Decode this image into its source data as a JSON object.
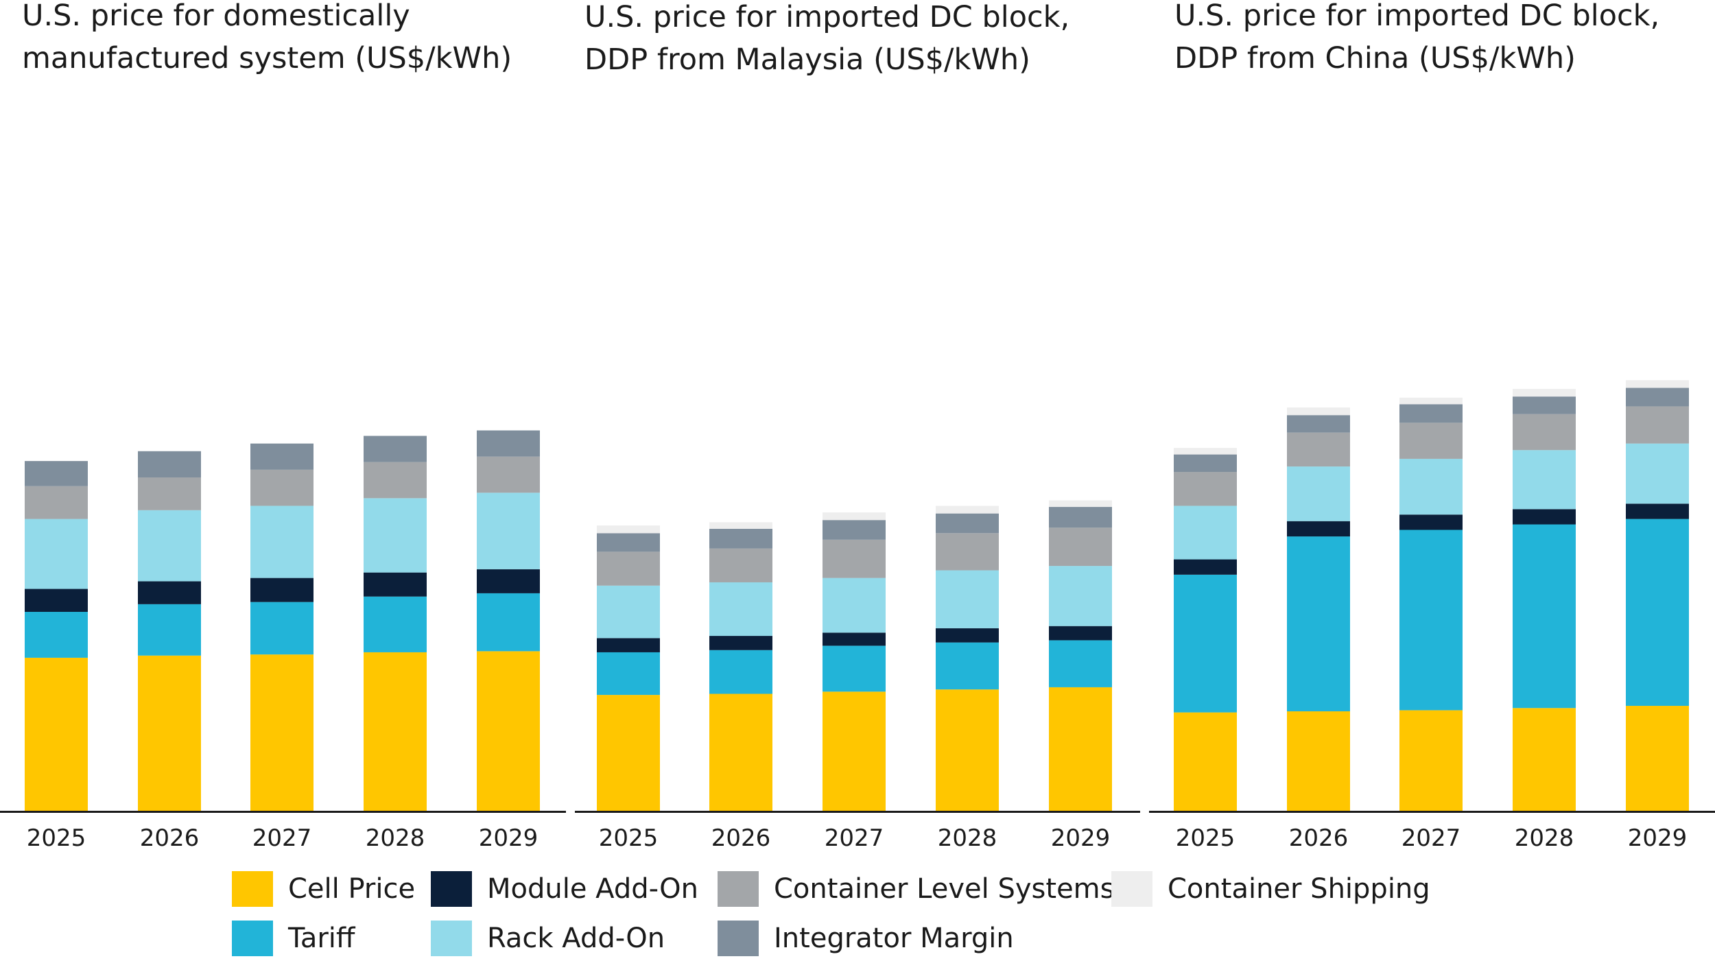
{
  "chart_data": {
    "type": "bar",
    "stacked": true,
    "categories": [
      "2025",
      "2026",
      "2027",
      "2028",
      "2029"
    ],
    "series_order": [
      "Cell Price",
      "Tariff",
      "Module Add-On",
      "Rack Add-On",
      "Container Level Systems",
      "Integrator Margin",
      "Container Shipping"
    ],
    "colors": {
      "Cell Price": "#FFC600",
      "Tariff": "#22B4D8",
      "Module Add-On": "#0B1F3A",
      "Rack Add-On": "#92DAEA",
      "Container Level Systems": "#A3A6A9",
      "Integrator Margin": "#7F8E9C",
      "Container Shipping": "#EEEEEE"
    },
    "ylim": [
      0,
      391
    ],
    "panels": [
      {
        "title_line1": "U.S. price for domestically",
        "title_line2": "manufactured system (US$/kWh)",
        "series": [
          {
            "name": "Cell Price",
            "values": [
              140,
              142,
              143,
              145,
              146
            ]
          },
          {
            "name": "Tariff",
            "values": [
              42,
              47,
              48,
              51,
              53
            ]
          },
          {
            "name": "Module Add-On",
            "values": [
              21,
              21,
              22,
              22,
              22
            ]
          },
          {
            "name": "Rack Add-On",
            "values": [
              64,
              65,
              66,
              68,
              70
            ]
          },
          {
            "name": "Container Level Systems",
            "values": [
              30,
              30,
              33,
              33,
              33
            ]
          },
          {
            "name": "Integrator Margin",
            "values": [
              23,
              24,
              24,
              24,
              24
            ]
          },
          {
            "name": "Container Shipping",
            "values": [
              0,
              0,
              0,
              0,
              0
            ]
          }
        ]
      },
      {
        "title_line1": "U.S. price for imported DC block,",
        "title_line2": "DDP from Malaysia (US$/kWh)",
        "series": [
          {
            "name": "Cell Price",
            "values": [
              106,
              107,
              109,
              111,
              113
            ]
          },
          {
            "name": "Tariff",
            "values": [
              39,
              40,
              42,
              43,
              43
            ]
          },
          {
            "name": "Module Add-On",
            "values": [
              13,
              13,
              12,
              13,
              13
            ]
          },
          {
            "name": "Rack Add-On",
            "values": [
              48,
              49,
              50,
              53,
              55
            ]
          },
          {
            "name": "Container Level Systems",
            "values": [
              31,
              31,
              35,
              34,
              35
            ]
          },
          {
            "name": "Integrator Margin",
            "values": [
              17,
              18,
              18,
              18,
              19
            ]
          },
          {
            "name": "Container Shipping",
            "values": [
              7,
              6,
              7,
              7,
              6
            ]
          }
        ]
      },
      {
        "title_line1": "U.S. price for imported DC block,",
        "title_line2": "DDP from China (US$/kWh)",
        "series": [
          {
            "name": "Cell Price",
            "values": [
              90,
              91,
              92,
              94,
              96
            ]
          },
          {
            "name": "Tariff",
            "values": [
              126,
              160,
              165,
              168,
              171
            ]
          },
          {
            "name": "Module Add-On",
            "values": [
              14,
              14,
              14,
              14,
              14
            ]
          },
          {
            "name": "Rack Add-On",
            "values": [
              49,
              50,
              51,
              54,
              55
            ]
          },
          {
            "name": "Container Level Systems",
            "values": [
              31,
              31,
              33,
              33,
              34
            ]
          },
          {
            "name": "Integrator Margin",
            "values": [
              16,
              16,
              17,
              16,
              17
            ]
          },
          {
            "name": "Container Shipping",
            "values": [
              6,
              7,
              6,
              7,
              7
            ]
          }
        ]
      }
    ],
    "legend": [
      "Cell Price",
      "Module Add-On",
      "Container Level Systems",
      "Container Shipping",
      "Tariff",
      "Rack Add-On",
      "Integrator Margin"
    ]
  }
}
